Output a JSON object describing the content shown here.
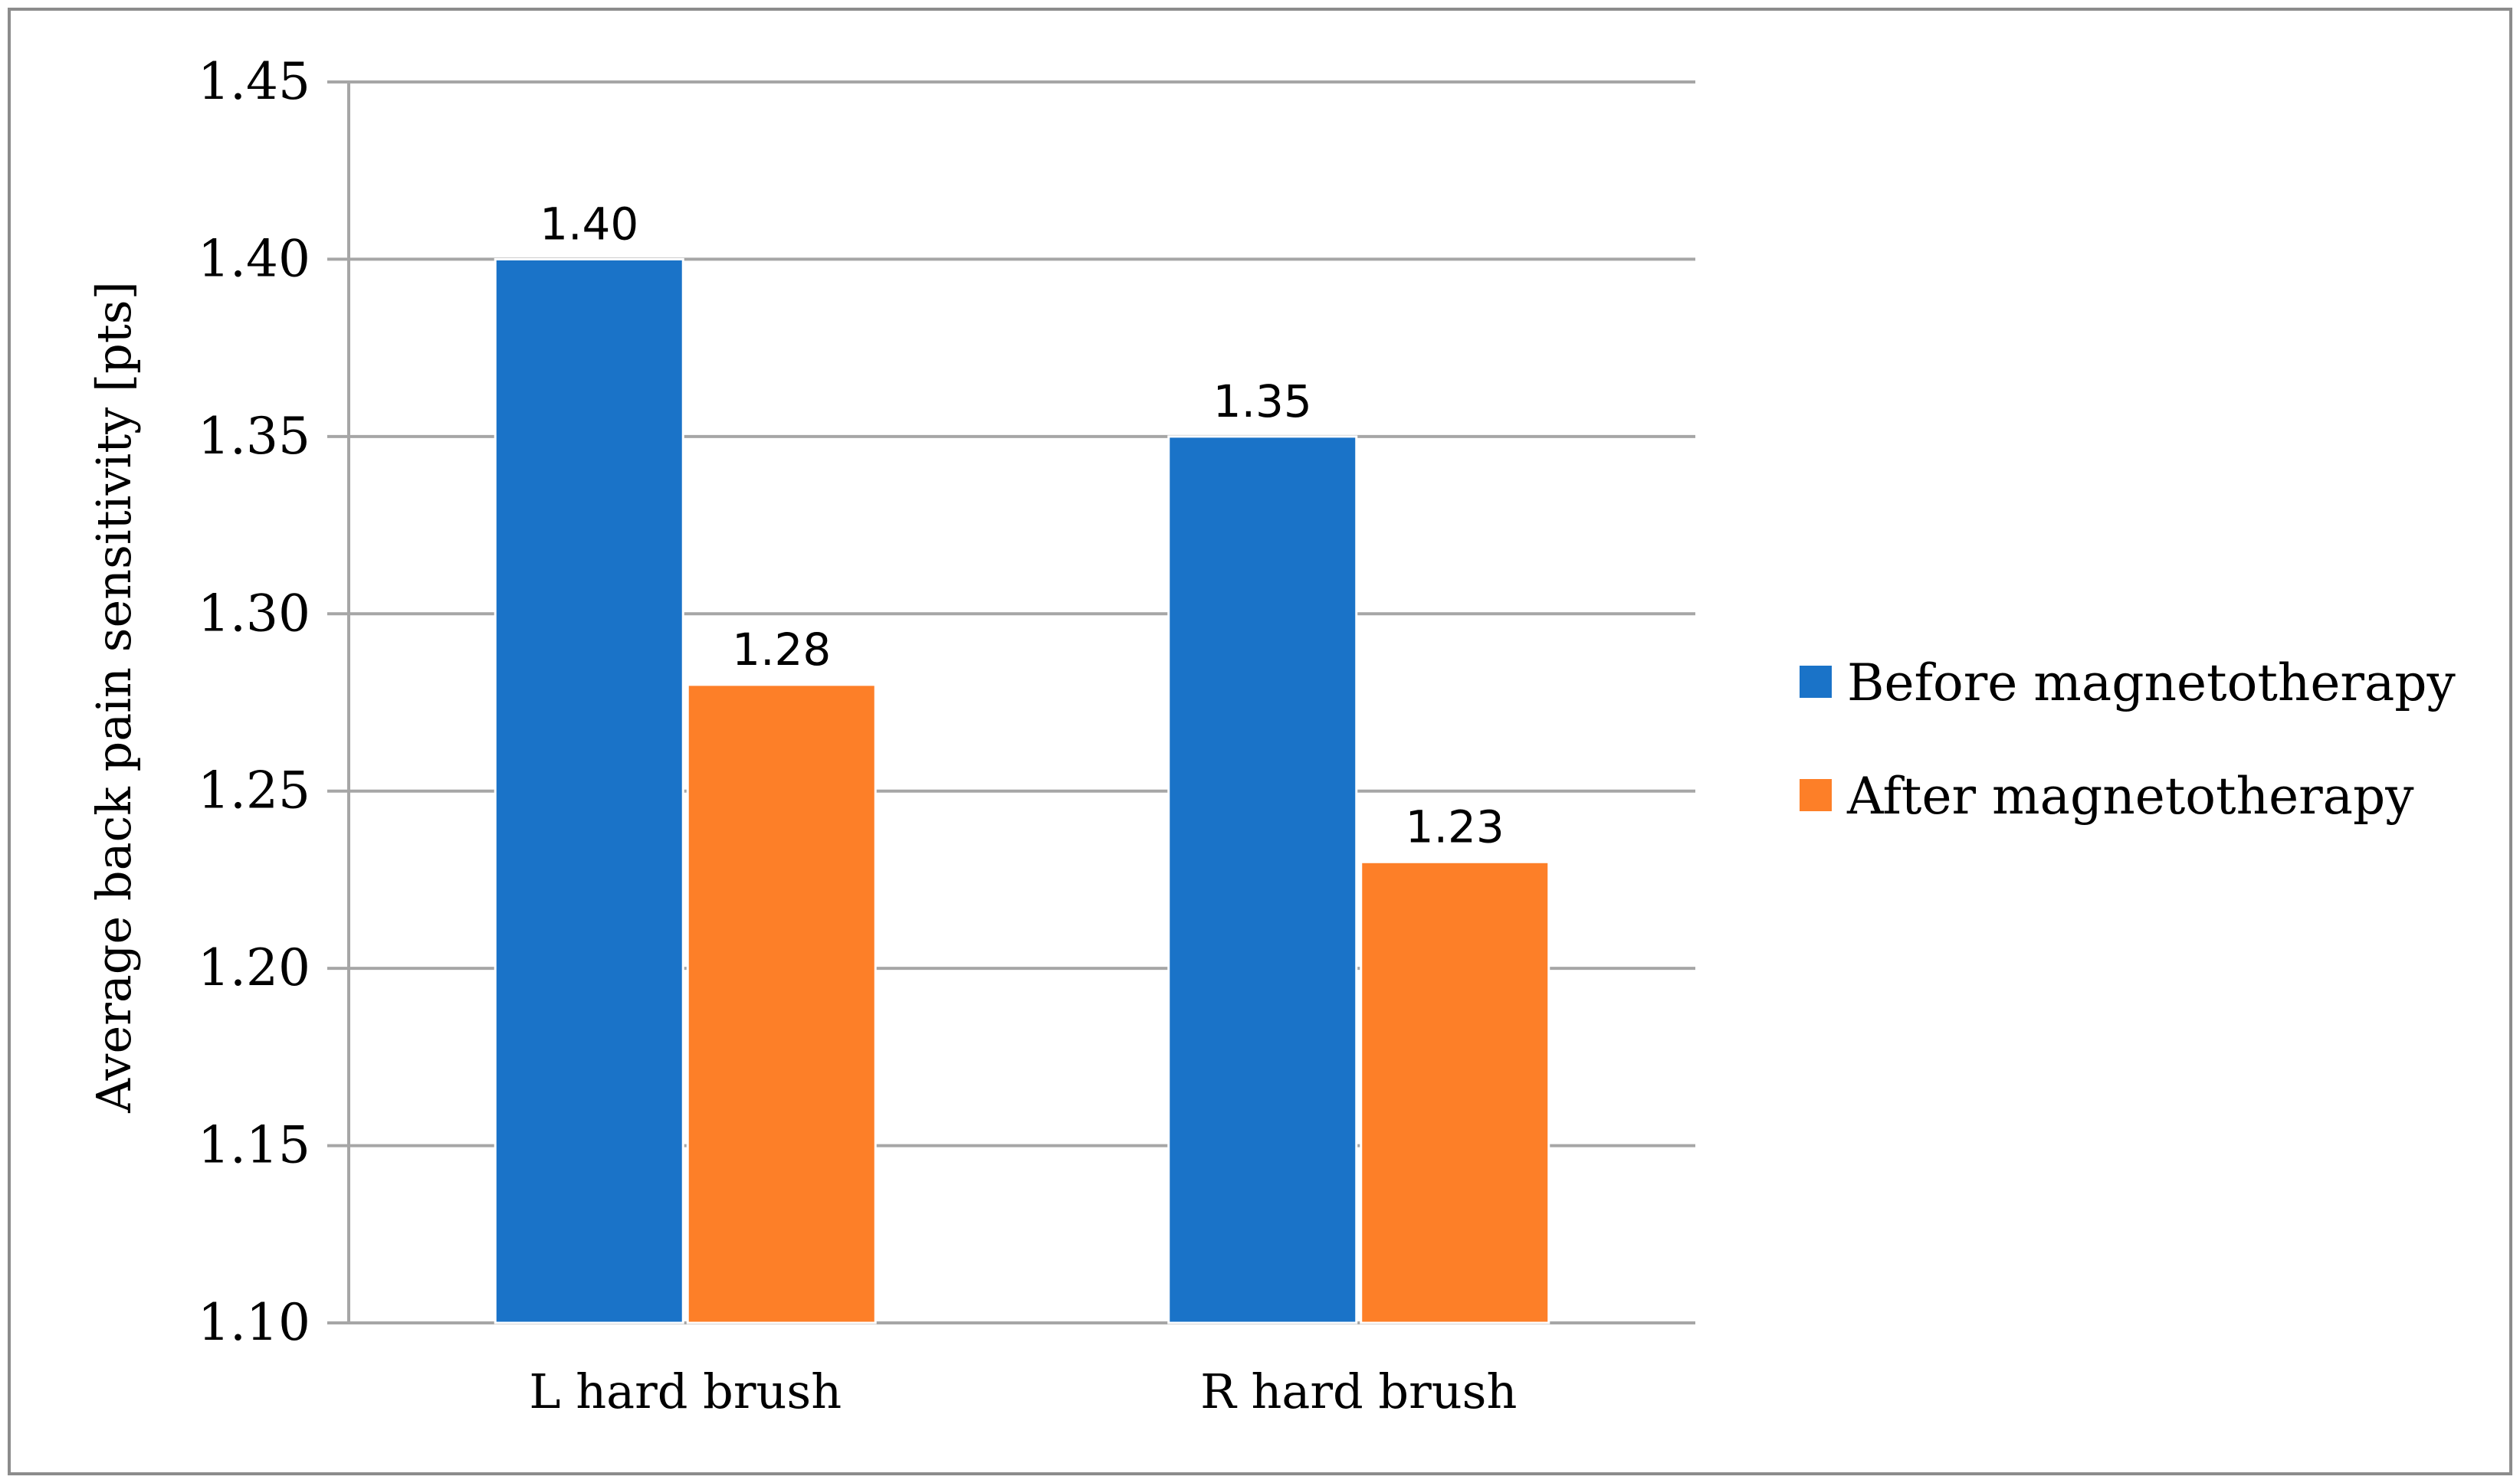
{
  "chart_data": {
    "type": "bar",
    "categories": [
      "L hard brush",
      "R hard brush"
    ],
    "series": [
      {
        "name": "Before magnetotherapy",
        "values": [
          1.4,
          1.35
        ],
        "color": "#1A73C8"
      },
      {
        "name": "After magnetotherapy",
        "values": [
          1.28,
          1.23
        ],
        "color": "#FD7F28"
      }
    ],
    "data_labels": [
      [
        "1.40",
        "1.35"
      ],
      [
        "1.28",
        "1.23"
      ]
    ],
    "ylabel": "Average back pain sensitivity [pts]",
    "xlabel": "",
    "ylim": [
      1.1,
      1.45
    ],
    "yticks": [
      "1.10",
      "1.15",
      "1.20",
      "1.25",
      "1.30",
      "1.35",
      "1.40",
      "1.45"
    ],
    "ytick_values": [
      1.1,
      1.15,
      1.2,
      1.25,
      1.3,
      1.35,
      1.4,
      1.45
    ],
    "grid": true,
    "gridline_color": "#A6A6A6",
    "legend_position": "right"
  }
}
